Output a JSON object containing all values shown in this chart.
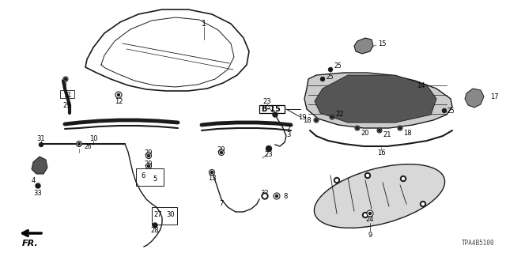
{
  "part_number": "TPA4B5100",
  "bg_color": "#ffffff",
  "line_color": "#1a1a1a"
}
